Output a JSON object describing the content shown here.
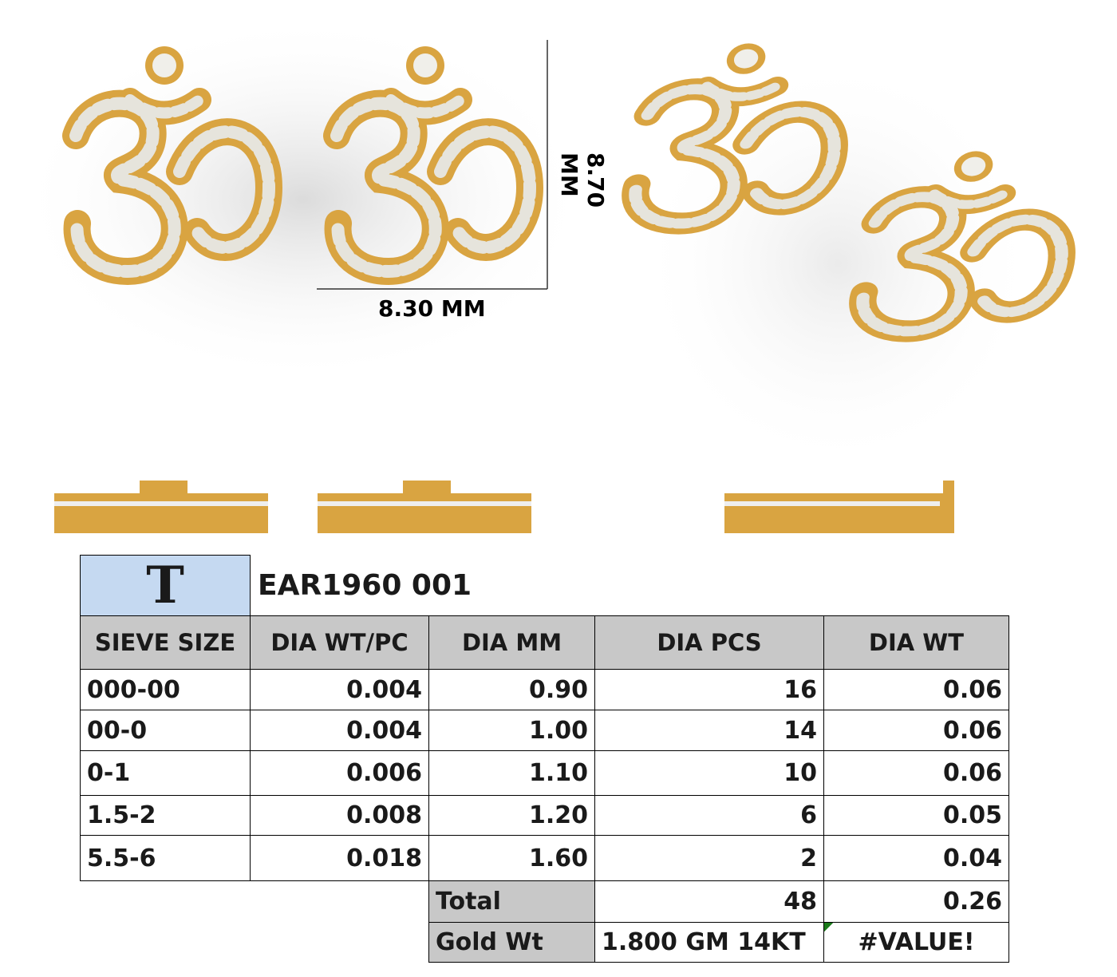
{
  "dimensions": {
    "height": "8.70 MM",
    "width": "8.30 MM"
  },
  "header": {
    "logo": "T",
    "code": "EAR1960 001"
  },
  "table": {
    "columns": [
      "SIEVE SIZE",
      "DIA WT/PC",
      "DIA MM",
      "DIA PCS",
      "DIA WT"
    ],
    "rows": [
      [
        "000-00",
        "0.004",
        "0.90",
        "16",
        "0.06"
      ],
      [
        "00-0",
        "0.004",
        "1.00",
        "14",
        "0.06"
      ],
      [
        "0-1",
        "0.006",
        "1.10",
        "10",
        "0.06"
      ],
      [
        "1.5-2",
        "0.008",
        "1.20",
        "6",
        "0.05"
      ],
      [
        "5.5-6",
        "0.018",
        "1.60",
        "2",
        "0.04"
      ]
    ]
  },
  "total": {
    "label": "Total",
    "pcs": "48",
    "wt": "0.26"
  },
  "gold": {
    "label": "Gold Wt",
    "value": "1.800 GM 14KT",
    "result": "#VALUE!"
  }
}
